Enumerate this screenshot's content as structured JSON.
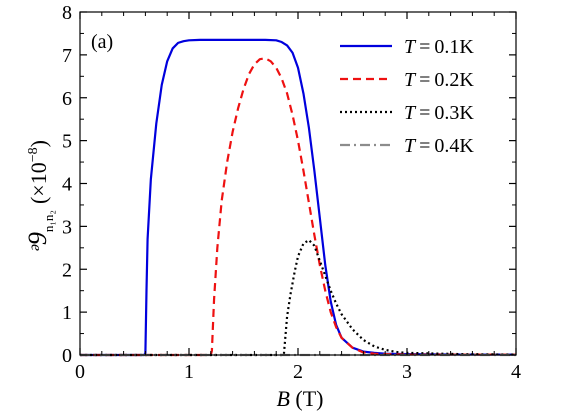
{
  "chart_data": {
    "type": "line",
    "panel_label": "(a)",
    "xlabel": {
      "italic": "B",
      "rest": " (T)"
    },
    "ylabel": {
      "symbol": "ᵊ9",
      "subscript": "n₁n₂",
      "unit_prefix": "(×10",
      "exponent": "−8",
      "unit_suffix": ")"
    },
    "xlim": [
      0,
      4
    ],
    "ylim": [
      0,
      8
    ],
    "xticks": [
      0,
      1,
      2,
      3,
      4
    ],
    "yticks": [
      0,
      1,
      2,
      3,
      4,
      5,
      6,
      7,
      8
    ],
    "legend_position": "top-right",
    "series": [
      {
        "name_var": "T",
        "name_val": "0.1K",
        "color": "#0000dd",
        "dash": "",
        "width": 2.2,
        "points": [
          [
            0,
            0
          ],
          [
            0.59,
            0
          ],
          [
            0.6,
            0.05
          ],
          [
            0.61,
            1.5
          ],
          [
            0.62,
            2.7
          ],
          [
            0.65,
            4.1
          ],
          [
            0.7,
            5.4
          ],
          [
            0.75,
            6.3
          ],
          [
            0.8,
            6.85
          ],
          [
            0.85,
            7.15
          ],
          [
            0.9,
            7.28
          ],
          [
            0.95,
            7.32
          ],
          [
            1.0,
            7.34
          ],
          [
            1.1,
            7.35
          ],
          [
            1.3,
            7.35
          ],
          [
            1.5,
            7.35
          ],
          [
            1.7,
            7.35
          ],
          [
            1.8,
            7.34
          ],
          [
            1.85,
            7.3
          ],
          [
            1.9,
            7.22
          ],
          [
            1.95,
            7.05
          ],
          [
            2.0,
            6.7
          ],
          [
            2.05,
            6.1
          ],
          [
            2.1,
            5.3
          ],
          [
            2.15,
            4.3
          ],
          [
            2.2,
            3.2
          ],
          [
            2.25,
            2.1
          ],
          [
            2.3,
            1.25
          ],
          [
            2.35,
            0.7
          ],
          [
            2.4,
            0.4
          ],
          [
            2.5,
            0.17
          ],
          [
            2.6,
            0.08
          ],
          [
            2.7,
            0.05
          ],
          [
            2.8,
            0.03
          ],
          [
            3.0,
            0.02
          ],
          [
            3.5,
            0.01
          ],
          [
            4.0,
            0.01
          ]
        ]
      },
      {
        "name_var": "T",
        "name_val": "0.2K",
        "color": "#ee1111",
        "dash": "8,5",
        "width": 2.2,
        "points": [
          [
            0,
            0
          ],
          [
            1.2,
            0
          ],
          [
            1.21,
            0.1
          ],
          [
            1.23,
            1.3
          ],
          [
            1.26,
            2.5
          ],
          [
            1.3,
            3.6
          ],
          [
            1.35,
            4.5
          ],
          [
            1.4,
            5.2
          ],
          [
            1.45,
            5.75
          ],
          [
            1.5,
            6.2
          ],
          [
            1.55,
            6.55
          ],
          [
            1.6,
            6.78
          ],
          [
            1.65,
            6.9
          ],
          [
            1.7,
            6.92
          ],
          [
            1.75,
            6.85
          ],
          [
            1.8,
            6.7
          ],
          [
            1.85,
            6.45
          ],
          [
            1.9,
            6.1
          ],
          [
            1.95,
            5.6
          ],
          [
            2.0,
            5.0
          ],
          [
            2.05,
            4.3
          ],
          [
            2.1,
            3.55
          ],
          [
            2.15,
            2.8
          ],
          [
            2.2,
            2.1
          ],
          [
            2.25,
            1.5
          ],
          [
            2.3,
            1.0
          ],
          [
            2.35,
            0.65
          ],
          [
            2.4,
            0.4
          ],
          [
            2.5,
            0.17
          ],
          [
            2.6,
            0.06
          ],
          [
            2.7,
            0.03
          ],
          [
            2.8,
            0.02
          ],
          [
            3.0,
            0.01
          ],
          [
            4.0,
            0.01
          ]
        ]
      },
      {
        "name_var": "T",
        "name_val": "0.3K",
        "color": "#000000",
        "dash": "2,3",
        "width": 2.2,
        "points": [
          [
            0,
            0
          ],
          [
            1.87,
            0
          ],
          [
            1.88,
            0.3
          ],
          [
            1.9,
            0.9
          ],
          [
            1.93,
            1.4
          ],
          [
            1.97,
            1.95
          ],
          [
            2.0,
            2.3
          ],
          [
            2.05,
            2.6
          ],
          [
            2.1,
            2.68
          ],
          [
            2.15,
            2.55
          ],
          [
            2.2,
            2.2
          ],
          [
            2.25,
            1.85
          ],
          [
            2.3,
            1.5
          ],
          [
            2.35,
            1.2
          ],
          [
            2.4,
            0.95
          ],
          [
            2.5,
            0.6
          ],
          [
            2.6,
            0.35
          ],
          [
            2.7,
            0.2
          ],
          [
            2.8,
            0.12
          ],
          [
            2.9,
            0.07
          ],
          [
            3.0,
            0.05
          ],
          [
            3.5,
            0.02
          ],
          [
            4.0,
            0.01
          ]
        ]
      },
      {
        "name_var": "T",
        "name_val": "0.4K",
        "color": "#8c8c8c",
        "dash": "10,4,2,4",
        "width": 2.2,
        "points": [
          [
            0,
            0
          ],
          [
            4.0,
            0
          ]
        ]
      }
    ]
  }
}
